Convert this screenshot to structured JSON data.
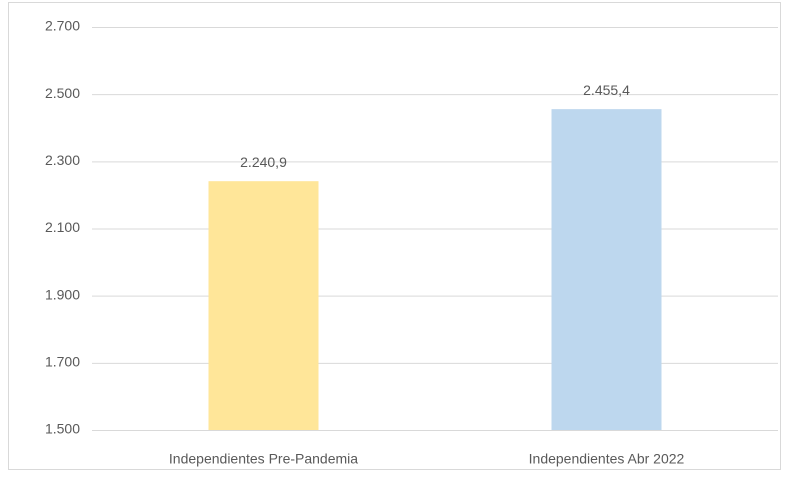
{
  "chart_data": {
    "type": "bar",
    "categories": [
      "Independientes Pre-Pandemia",
      "Independientes Abr 2022"
    ],
    "values": [
      2240.9,
      2455.4
    ],
    "value_labels": [
      "2.240,9",
      "2.455,4"
    ],
    "colors": [
      "#ffe699",
      "#bdd7ee"
    ],
    "ylim": [
      1500,
      2700
    ],
    "yticks": [
      {
        "value": 1500,
        "label": "1.500"
      },
      {
        "value": 1700,
        "label": "1.700"
      },
      {
        "value": 1900,
        "label": "1.900"
      },
      {
        "value": 2100,
        "label": "2.100"
      },
      {
        "value": 2300,
        "label": "2.300"
      },
      {
        "value": 2500,
        "label": "2.500"
      },
      {
        "value": 2700,
        "label": "2.700"
      }
    ],
    "grid": true
  }
}
